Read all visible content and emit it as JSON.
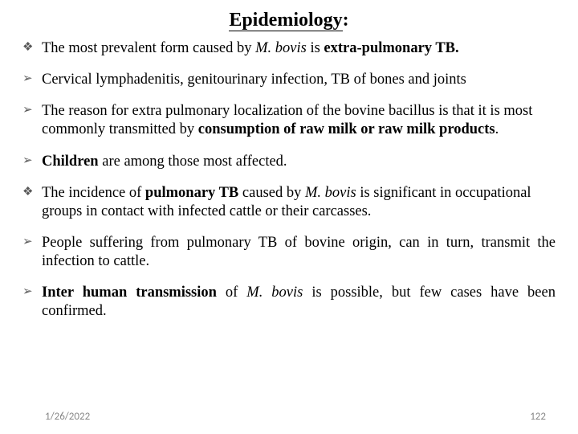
{
  "title": "Epidemiology",
  "title_suffix": ":",
  "bullets": {
    "diamond": "❖",
    "arrow": "➢"
  },
  "items": [
    {
      "type": "diamond",
      "html": "The most prevalent form caused by <span class='i'>M. bovis</span> is <span class='b'>extra-pulmonary TB.</span>"
    },
    {
      "type": "arrow",
      "html": "Cervical lymphadenitis, genitourinary infection, TB of bones and joints"
    },
    {
      "type": "arrow",
      "html": "The reason for extra pulmonary localization of the bovine bacillus is that it is most commonly transmitted by <span class='b'>consumption of raw milk or raw milk products</span>."
    },
    {
      "type": "arrow",
      "html": "<span class='b'>Children</span> are among those most affected."
    },
    {
      "type": "diamond",
      "html": "The incidence of <span class='b'>pulmonary TB</span> caused by <span class='i'>M. bovis</span> is significant in occupational groups in contact with infected cattle or their carcasses."
    },
    {
      "type": "arrow",
      "justify": true,
      "html": "People suffering from pulmonary TB of bovine origin, can in turn, transmit the infection to cattle."
    },
    {
      "type": "arrow",
      "justify": true,
      "html": "<span class='b'>Inter human transmission</span> of <span class='i'>M. bovis</span> is possible, but few cases have been confirmed."
    }
  ],
  "footer": {
    "date": "1/26/2022",
    "page": "122"
  },
  "colors": {
    "text": "#000000",
    "bullet": "#595959",
    "footer": "#878787",
    "background": "#ffffff"
  },
  "typography": {
    "title_fontsize": 24,
    "body_fontsize": 18.5,
    "footer_fontsize": 13,
    "font_family": "Times New Roman"
  }
}
